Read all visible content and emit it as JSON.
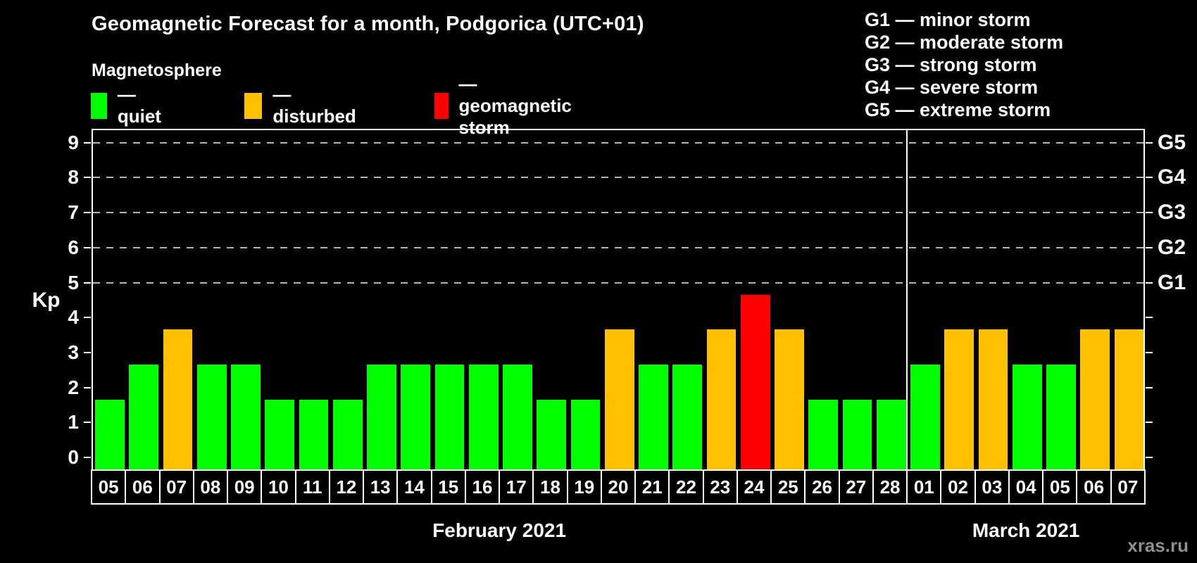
{
  "header": {
    "title": "Geomagnetic Forecast for a month, Podgorica (UTC+01)",
    "subtitle": "Magnetosphere"
  },
  "legend": {
    "position": "top-left",
    "items": [
      {
        "status": "quiet",
        "label": "— quiet"
      },
      {
        "status": "disturbed",
        "label": "— disturbed"
      },
      {
        "status": "storm",
        "label": "— geomagnetic storm"
      }
    ]
  },
  "g_legend": [
    "G1 — minor storm",
    "G2 — moderate storm",
    "G3 — strong storm",
    "G4 — severe storm",
    "G5 — extreme storm"
  ],
  "watermark": "xras.ru",
  "chart_data": {
    "type": "bar",
    "title": "Geomagnetic Forecast for a month, Podgorica (UTC+01)",
    "ylabel": "Kp",
    "ylim": [
      0,
      9
    ],
    "yticks": [
      0,
      1,
      2,
      3,
      4,
      5,
      6,
      7,
      8,
      9
    ],
    "gridlines_at": [
      5,
      6,
      7,
      8,
      9
    ],
    "grid_style": "dashed horizontal lines at storm levels",
    "right_axis_labels": [
      {
        "kp": 5,
        "label": "G1"
      },
      {
        "kp": 6,
        "label": "G2"
      },
      {
        "kp": 7,
        "label": "G3"
      },
      {
        "kp": 8,
        "label": "G4"
      },
      {
        "kp": 9,
        "label": "G5"
      }
    ],
    "status_colors": {
      "quiet": "#00ff00",
      "disturbed": "#ffc000",
      "storm": "#ff0000"
    },
    "months": [
      {
        "label": "February 2021",
        "days": [
          {
            "date": "05",
            "kp": 2,
            "status": "quiet"
          },
          {
            "date": "06",
            "kp": 3,
            "status": "quiet"
          },
          {
            "date": "07",
            "kp": 4,
            "status": "disturbed"
          },
          {
            "date": "08",
            "kp": 3,
            "status": "quiet"
          },
          {
            "date": "09",
            "kp": 3,
            "status": "quiet"
          },
          {
            "date": "10",
            "kp": 2,
            "status": "quiet"
          },
          {
            "date": "11",
            "kp": 2,
            "status": "quiet"
          },
          {
            "date": "12",
            "kp": 2,
            "status": "quiet"
          },
          {
            "date": "13",
            "kp": 3,
            "status": "quiet"
          },
          {
            "date": "14",
            "kp": 3,
            "status": "quiet"
          },
          {
            "date": "15",
            "kp": 3,
            "status": "quiet"
          },
          {
            "date": "16",
            "kp": 3,
            "status": "quiet"
          },
          {
            "date": "17",
            "kp": 3,
            "status": "quiet"
          },
          {
            "date": "18",
            "kp": 2,
            "status": "quiet"
          },
          {
            "date": "19",
            "kp": 2,
            "status": "quiet"
          },
          {
            "date": "20",
            "kp": 4,
            "status": "disturbed"
          },
          {
            "date": "21",
            "kp": 3,
            "status": "quiet"
          },
          {
            "date": "22",
            "kp": 3,
            "status": "quiet"
          },
          {
            "date": "23",
            "kp": 4,
            "status": "disturbed"
          },
          {
            "date": "24",
            "kp": 5,
            "status": "storm"
          },
          {
            "date": "25",
            "kp": 4,
            "status": "disturbed"
          },
          {
            "date": "26",
            "kp": 2,
            "status": "quiet"
          },
          {
            "date": "27",
            "kp": 2,
            "status": "quiet"
          },
          {
            "date": "28",
            "kp": 2,
            "status": "quiet"
          }
        ]
      },
      {
        "label": "March 2021",
        "days": [
          {
            "date": "01",
            "kp": 3,
            "status": "quiet"
          },
          {
            "date": "02",
            "kp": 4,
            "status": "disturbed"
          },
          {
            "date": "03",
            "kp": 4,
            "status": "disturbed"
          },
          {
            "date": "04",
            "kp": 3,
            "status": "quiet"
          },
          {
            "date": "05",
            "kp": 3,
            "status": "quiet"
          },
          {
            "date": "06",
            "kp": 4,
            "status": "disturbed"
          },
          {
            "date": "07",
            "kp": 4,
            "status": "disturbed"
          }
        ]
      }
    ]
  }
}
